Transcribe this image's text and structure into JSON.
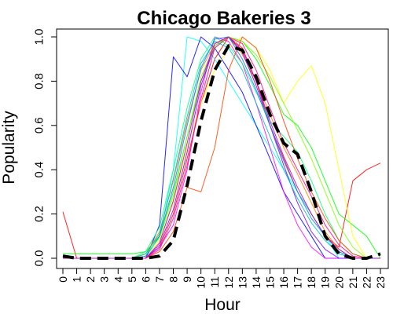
{
  "chart_data": {
    "type": "line",
    "title": "Chicago Bakeries 3",
    "xlabel": "Hour",
    "ylabel": "Popularity",
    "xlim": [
      0,
      23
    ],
    "ylim": [
      0,
      1.0
    ],
    "x": [
      0,
      1,
      2,
      3,
      4,
      5,
      6,
      7,
      8,
      9,
      10,
      11,
      12,
      13,
      14,
      15,
      16,
      17,
      18,
      19,
      20,
      21,
      22,
      23
    ],
    "x_ticks": [
      "0",
      "1",
      "2",
      "3",
      "4",
      "5",
      "6",
      "7",
      "8",
      "9",
      "10",
      "11",
      "12",
      "13",
      "14",
      "15",
      "16",
      "17",
      "18",
      "19",
      "20",
      "21",
      "22",
      "23"
    ],
    "y_ticks": [
      "0.0",
      "0.2",
      "0.4",
      "0.6",
      "0.8",
      "1.0"
    ],
    "grid": false,
    "legend": "none",
    "series": [
      {
        "color": "#000000",
        "dashed": true,
        "bold": true,
        "values": [
          0.01,
          0,
          0,
          0,
          0,
          0,
          0,
          0.01,
          0.08,
          0.33,
          0.62,
          0.85,
          0.96,
          0.94,
          0.82,
          0.65,
          0.52,
          0.47,
          0.3,
          0.1,
          0.02,
          0,
          0,
          0.02
        ]
      },
      {
        "color": "#ff0000",
        "values": [
          0.21,
          0,
          0,
          0,
          0,
          0,
          0,
          0.05,
          0.2,
          0.45,
          0.7,
          0.9,
          1.0,
          0.95,
          0.8,
          0.6,
          0.45,
          0.3,
          0.2,
          0.1,
          0.05,
          0.35,
          0.4,
          0.43
        ]
      },
      {
        "color": "#00ffff",
        "values": [
          0,
          0,
          0,
          0,
          0,
          0,
          0,
          0.1,
          0.4,
          1.0,
          0.98,
          0.9,
          0.8,
          0.7,
          0.6,
          0.5,
          0.4,
          0.3,
          0.2,
          0.1,
          0,
          0,
          0,
          0
        ]
      },
      {
        "color": "#0000ff",
        "values": [
          0,
          0,
          0,
          0,
          0,
          0,
          0,
          0.15,
          0.91,
          0.82,
          1.0,
          0.95,
          0.85,
          0.75,
          0.6,
          0.45,
          0.3,
          0.2,
          0.1,
          0,
          0,
          0,
          0,
          0
        ]
      },
      {
        "color": "#00ff00",
        "values": [
          0.02,
          0.02,
          0.02,
          0.02,
          0.02,
          0.02,
          0.03,
          0.1,
          0.3,
          0.55,
          0.8,
          0.95,
          1.0,
          0.98,
          0.9,
          0.78,
          0.65,
          0.6,
          0.5,
          0.35,
          0.2,
          0.15,
          0.1,
          0
        ]
      },
      {
        "color": "#ff00ff",
        "values": [
          0,
          0,
          0,
          0,
          0,
          0,
          0,
          0.05,
          0.15,
          0.4,
          0.75,
          1.0,
          0.98,
          0.88,
          0.7,
          0.5,
          0.3,
          0.15,
          0.05,
          0,
          0,
          0,
          0,
          0
        ]
      },
      {
        "color": "#ffff00",
        "values": [
          0,
          0,
          0,
          0,
          0,
          0,
          0,
          0.08,
          0.25,
          0.5,
          0.7,
          0.85,
          0.95,
          1.0,
          0.95,
          0.85,
          0.7,
          0.8,
          0.87,
          0.7,
          0.4,
          0.1,
          0,
          0
        ]
      },
      {
        "color": "#ff8000",
        "values": [
          0,
          0,
          0,
          0,
          0,
          0,
          0.02,
          0.12,
          0.35,
          0.62,
          0.85,
          0.97,
          1.0,
          0.92,
          0.8,
          0.65,
          0.5,
          0.38,
          0.25,
          0.12,
          0.04,
          0,
          0,
          0
        ]
      },
      {
        "color": "#8000ff",
        "values": [
          0,
          0,
          0,
          0,
          0,
          0,
          0,
          0.06,
          0.22,
          0.48,
          0.78,
          0.96,
          1.0,
          0.93,
          0.78,
          0.6,
          0.42,
          0.25,
          0.12,
          0.04,
          0,
          0,
          0,
          0
        ]
      },
      {
        "color": "#00ff80",
        "values": [
          0,
          0,
          0,
          0,
          0,
          0,
          0.03,
          0.14,
          0.4,
          0.68,
          0.9,
          1.0,
          0.96,
          0.88,
          0.75,
          0.62,
          0.55,
          0.48,
          0.35,
          0.2,
          0.08,
          0.02,
          0,
          0
        ]
      },
      {
        "color": "#ff0080",
        "values": [
          0,
          0,
          0,
          0,
          0,
          0,
          0,
          0.04,
          0.18,
          0.42,
          0.72,
          0.95,
          1.0,
          0.97,
          0.85,
          0.68,
          0.52,
          0.4,
          0.28,
          0.15,
          0.06,
          0.01,
          0,
          0
        ]
      },
      {
        "color": "#0080ff",
        "values": [
          0,
          0,
          0,
          0,
          0,
          0,
          0.01,
          0.1,
          0.32,
          0.6,
          0.86,
          0.99,
          1.0,
          0.9,
          0.76,
          0.6,
          0.44,
          0.3,
          0.18,
          0.1,
          0.03,
          0,
          0,
          0
        ]
      },
      {
        "color": "#80ff00",
        "values": [
          0,
          0,
          0,
          0,
          0,
          0,
          0.02,
          0.09,
          0.28,
          0.55,
          0.82,
          0.96,
          1.0,
          0.98,
          0.92,
          0.82,
          0.7,
          0.58,
          0.45,
          0.3,
          0.15,
          0.05,
          0,
          0
        ]
      },
      {
        "color": "#ff4000",
        "values": [
          0,
          0,
          0,
          0,
          0,
          0,
          0,
          0.03,
          0.12,
          0.32,
          0.3,
          0.5,
          0.85,
          1.0,
          0.95,
          0.8,
          0.62,
          0.45,
          0.3,
          0.18,
          0.08,
          0.02,
          0,
          0
        ]
      },
      {
        "color": "#00c0c0",
        "values": [
          0,
          0,
          0,
          0,
          0,
          0,
          0.02,
          0.11,
          0.36,
          0.64,
          0.88,
          0.98,
          0.95,
          0.85,
          0.7,
          0.55,
          0.4,
          0.27,
          0.16,
          0.08,
          0.02,
          0,
          0,
          0
        ]
      },
      {
        "color": "#c000c0",
        "values": [
          0,
          0,
          0,
          0,
          0,
          0,
          0,
          0.07,
          0.26,
          0.52,
          0.8,
          0.97,
          1.0,
          0.94,
          0.8,
          0.62,
          0.46,
          0.32,
          0.2,
          0.1,
          0.04,
          0,
          0,
          0
        ]
      }
    ]
  }
}
